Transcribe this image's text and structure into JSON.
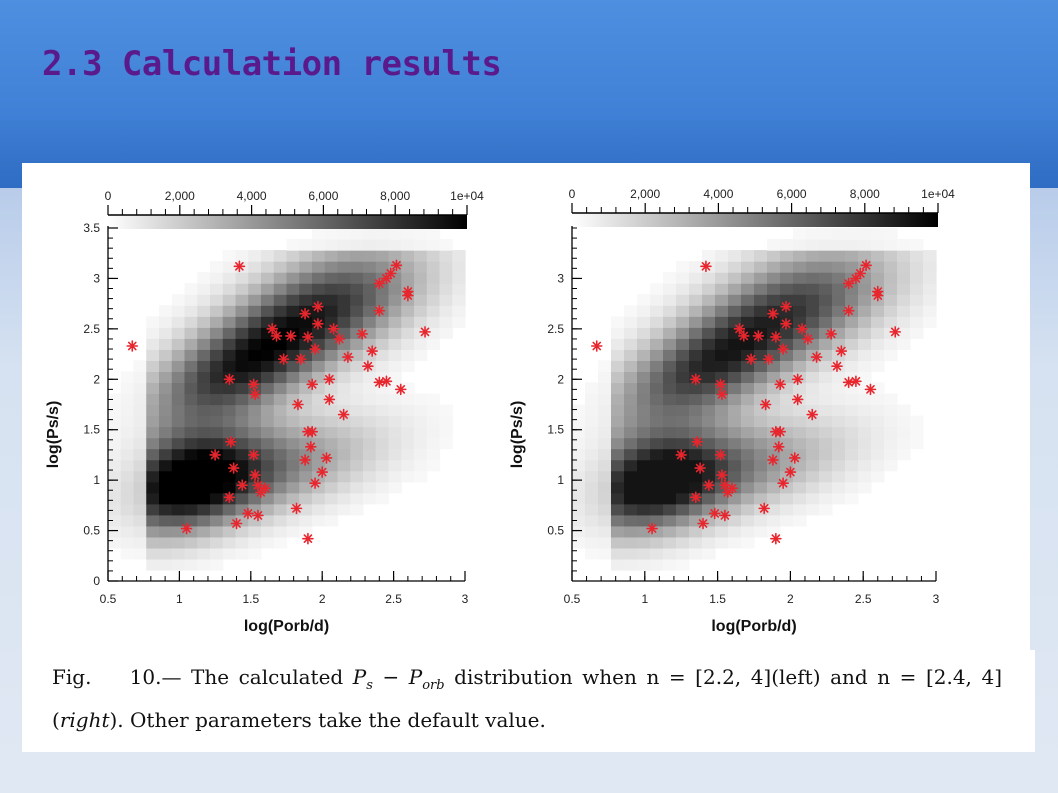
{
  "slide": {
    "title": "2.3   Calculation results"
  },
  "caption": {
    "fig_label": "Fig.",
    "fig_number": "10.—",
    "text1": " The calculated ",
    "formula": "P",
    "formula_sub1": "s",
    "formula_mid": " − P",
    "formula_sub2": "orb",
    "text2": " distribution when ",
    "n1": "n = [2.2, 4](left)",
    "text3": " and ",
    "n2": "n = [2.4, 4](",
    "right_word": "right",
    "text4": "). Other parameters take the default value."
  },
  "chart_data": [
    {
      "type": "heatmap",
      "title": "",
      "xlabel": "log(Porb/d)",
      "ylabel": "log(Ps/s)",
      "xlim": [
        0.5,
        3
      ],
      "ylim": [
        0,
        3.5
      ],
      "xticks": [
        "0.5",
        "1",
        "1.5",
        "2",
        "2.5",
        "3"
      ],
      "yticks": [
        "0",
        "0.5",
        "1",
        "1.5",
        "2",
        "2.5",
        "3",
        "3.5"
      ],
      "colorbar": {
        "ticks": [
          "0",
          "2,000",
          "4,000",
          "6,000",
          "8,000",
          "1e+04"
        ],
        "range": [
          0,
          10000
        ],
        "colors": [
          "#ffffff",
          "#000000"
        ]
      },
      "observed_marker_color": "#e8262e",
      "observed_points": [
        [
          0.67,
          2.33
        ],
        [
          1.42,
          3.12
        ],
        [
          1.05,
          0.52
        ],
        [
          1.25,
          1.25
        ],
        [
          1.35,
          0.83
        ],
        [
          1.36,
          1.38
        ],
        [
          1.38,
          1.12
        ],
        [
          1.4,
          0.57
        ],
        [
          1.44,
          0.95
        ],
        [
          1.52,
          1.25
        ],
        [
          1.53,
          1.05
        ],
        [
          1.55,
          0.95
        ],
        [
          1.57,
          0.88
        ],
        [
          1.6,
          0.92
        ],
        [
          1.48,
          0.67
        ],
        [
          1.55,
          0.65
        ],
        [
          1.35,
          2.0
        ],
        [
          1.52,
          1.95
        ],
        [
          1.53,
          1.85
        ],
        [
          1.65,
          2.5
        ],
        [
          1.68,
          2.43
        ],
        [
          1.73,
          2.2
        ],
        [
          1.78,
          2.43
        ],
        [
          1.83,
          1.75
        ],
        [
          1.85,
          2.2
        ],
        [
          1.88,
          2.65
        ],
        [
          1.9,
          2.42
        ],
        [
          1.93,
          1.95
        ],
        [
          1.95,
          2.3
        ],
        [
          1.97,
          2.72
        ],
        [
          1.97,
          2.55
        ],
        [
          2.05,
          1.8
        ],
        [
          2.05,
          2.0
        ],
        [
          2.08,
          2.5
        ],
        [
          2.12,
          2.4
        ],
        [
          2.15,
          1.65
        ],
        [
          2.18,
          2.22
        ],
        [
          2.28,
          2.45
        ],
        [
          2.32,
          2.13
        ],
        [
          2.35,
          2.28
        ],
        [
          2.4,
          1.97
        ],
        [
          2.45,
          1.98
        ],
        [
          2.4,
          2.95
        ],
        [
          2.45,
          3.0
        ],
        [
          2.48,
          3.05
        ],
        [
          2.52,
          3.13
        ],
        [
          2.55,
          1.9
        ],
        [
          2.6,
          2.87
        ],
        [
          2.6,
          2.83
        ],
        [
          2.72,
          2.47
        ],
        [
          2.4,
          2.68
        ],
        [
          1.88,
          1.2
        ],
        [
          1.9,
          1.48
        ],
        [
          1.93,
          1.48
        ],
        [
          1.92,
          1.33
        ],
        [
          1.95,
          0.97
        ],
        [
          2.0,
          1.08
        ],
        [
          2.03,
          1.22
        ],
        [
          1.9,
          0.42
        ],
        [
          1.82,
          0.72
        ]
      ]
    },
    {
      "type": "heatmap",
      "title": "",
      "xlabel": "log(Porb/d)",
      "ylabel": "log(Ps/s)",
      "xlim": [
        0.5,
        3
      ],
      "ylim": [
        0,
        3.5
      ],
      "xticks": [
        "0.5",
        "1",
        "1.5",
        "2",
        "2.5",
        "3"
      ],
      "yticks": [
        "0.5",
        "1",
        "1.5",
        "2",
        "2.5",
        "3"
      ],
      "colorbar": {
        "ticks": [
          "0",
          "2,000",
          "4,000",
          "6,000",
          "8,000",
          "1e+04"
        ],
        "range": [
          0,
          10000
        ],
        "colors": [
          "#ffffff",
          "#000000"
        ]
      },
      "observed_marker_color": "#e8262e",
      "observed_points": [
        [
          0.67,
          2.33
        ],
        [
          1.42,
          3.12
        ],
        [
          1.05,
          0.52
        ],
        [
          1.25,
          1.25
        ],
        [
          1.35,
          0.83
        ],
        [
          1.36,
          1.38
        ],
        [
          1.38,
          1.12
        ],
        [
          1.4,
          0.57
        ],
        [
          1.44,
          0.95
        ],
        [
          1.52,
          1.25
        ],
        [
          1.53,
          1.05
        ],
        [
          1.55,
          0.95
        ],
        [
          1.57,
          0.88
        ],
        [
          1.6,
          0.92
        ],
        [
          1.48,
          0.67
        ],
        [
          1.55,
          0.65
        ],
        [
          1.35,
          2.0
        ],
        [
          1.52,
          1.95
        ],
        [
          1.53,
          1.85
        ],
        [
          1.65,
          2.5
        ],
        [
          1.68,
          2.43
        ],
        [
          1.73,
          2.2
        ],
        [
          1.78,
          2.43
        ],
        [
          1.83,
          1.75
        ],
        [
          1.85,
          2.2
        ],
        [
          1.88,
          2.65
        ],
        [
          1.9,
          2.42
        ],
        [
          1.93,
          1.95
        ],
        [
          1.95,
          2.3
        ],
        [
          1.97,
          2.72
        ],
        [
          1.97,
          2.55
        ],
        [
          2.05,
          1.8
        ],
        [
          2.05,
          2.0
        ],
        [
          2.08,
          2.5
        ],
        [
          2.12,
          2.4
        ],
        [
          2.15,
          1.65
        ],
        [
          2.18,
          2.22
        ],
        [
          2.28,
          2.45
        ],
        [
          2.32,
          2.13
        ],
        [
          2.35,
          2.28
        ],
        [
          2.4,
          1.97
        ],
        [
          2.45,
          1.98
        ],
        [
          2.4,
          2.95
        ],
        [
          2.45,
          3.0
        ],
        [
          2.48,
          3.05
        ],
        [
          2.52,
          3.13
        ],
        [
          2.55,
          1.9
        ],
        [
          2.6,
          2.87
        ],
        [
          2.6,
          2.83
        ],
        [
          2.72,
          2.47
        ],
        [
          2.4,
          2.68
        ],
        [
          1.88,
          1.2
        ],
        [
          1.9,
          1.48
        ],
        [
          1.93,
          1.48
        ],
        [
          1.92,
          1.33
        ],
        [
          1.95,
          0.97
        ],
        [
          2.0,
          1.08
        ],
        [
          2.03,
          1.22
        ],
        [
          1.9,
          0.42
        ],
        [
          1.82,
          0.72
        ]
      ]
    }
  ]
}
